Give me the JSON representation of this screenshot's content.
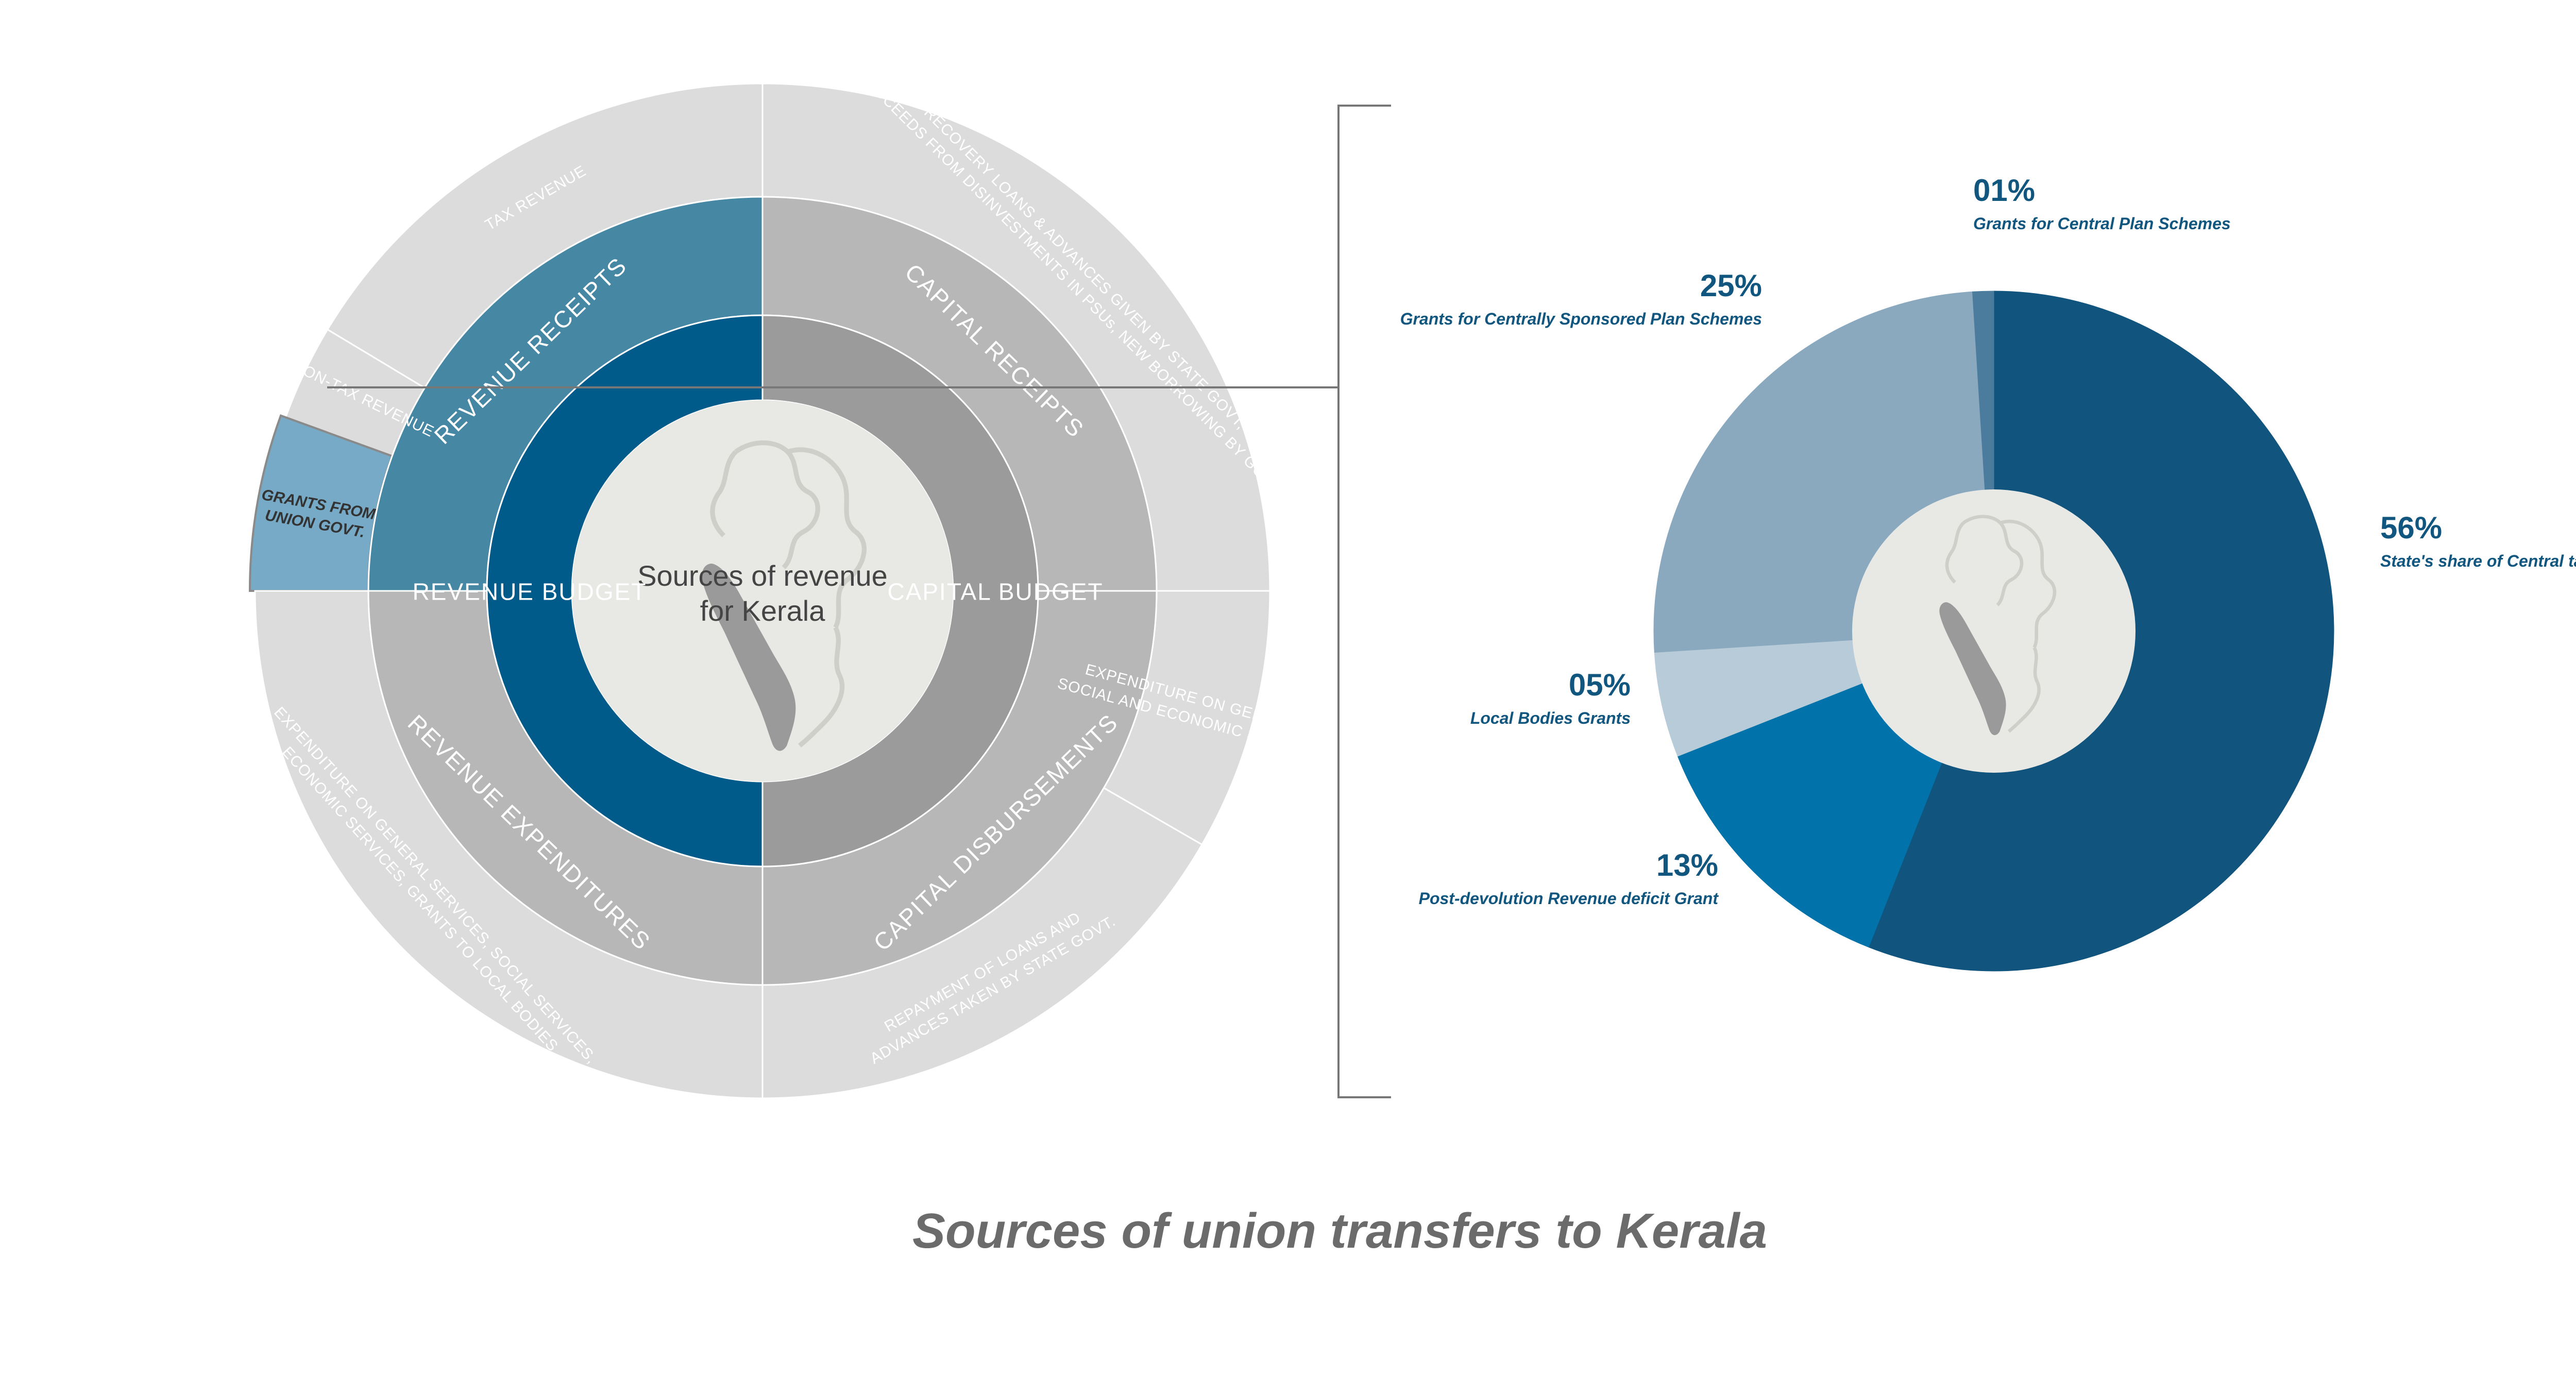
{
  "sunburst": {
    "center_title": "Sources of revenue for Kerala",
    "center_lines": [
      "Sources of revenue",
      "for Kerala"
    ],
    "inner_ring": [
      {
        "label": "REVENUE  BUDGET",
        "color": "#005b8b"
      },
      {
        "label": "CAPITAL  BUDGET",
        "color": "#9b9b9b"
      }
    ],
    "middle_ring": [
      {
        "label": "REVENUE RECEIPTS",
        "color": "#4687a4"
      },
      {
        "label": "CAPITAL RECEIPTS",
        "color": "#b7b7b7"
      },
      {
        "label": "CAPITAL  DISBURSEMENTS",
        "color": "#b7b7b7"
      },
      {
        "label": "REVENUE  EXPENDITURES",
        "color": "#b7b7b7"
      }
    ],
    "outer_ring": [
      {
        "label": "TAX REVENUE",
        "color": "#dcdcdc"
      },
      {
        "label": "NON-TAX REVENUE",
        "color": "#dcdcdc"
      },
      {
        "label": "GRANTS FROM UNION GOVT.",
        "lines": [
          "GRANTS FROM",
          "UNION GOVT."
        ],
        "color": "#76aac6"
      },
      {
        "label": "RECOVERY LOANS & ADVANCES GIVEN BY STATE GOVT, PROCEEDS FROM DISINVESTMENTS IN PSUs, NEW BORROWING BY GOVT.",
        "lines": [
          "RECOVERY LOANS & ADVANCES GIVEN BY STATE GOVT,",
          "PROCEEDS FROM DISINVESTMENTS IN PSUs, NEW BORROWING BY GOVT."
        ],
        "color": "#dcdcdc"
      },
      {
        "label": "EXPENDITURE ON GENERAL, SOCIAL AND ECONOMIC SERVICES",
        "lines": [
          "EXPENDITURE ON GENERAL,",
          "SOCIAL AND ECONOMIC SERVICES"
        ],
        "color": "#dcdcdc"
      },
      {
        "label": "REPAYMENT OF LOANS AND ADVANCES TAKEN BY STATE GOVT.",
        "lines": [
          "REPAYMENT OF LOANS AND",
          "ADVANCES TAKEN BY STATE GOVT."
        ],
        "color": "#dcdcdc"
      },
      {
        "label": "EXPENDITURE ON GENERAL SERVICES, SOCIAL SERVICES, ECONOMIC SERVICES, GRANTS TO LOCAL BODIES",
        "lines": [
          "EXPENDITURE ON GENERAL SERVICES, SOCIAL SERVICES,",
          "ECONOMIC SERVICES, GRANTS TO LOCAL BODIES"
        ],
        "color": "#dcdcdc"
      }
    ]
  },
  "chart_data": {
    "type": "pie",
    "title": "Sources of union transfers to Kerala",
    "slices": [
      {
        "label": "State's share of Central taxes",
        "pct_label": "56%",
        "value": 56,
        "color": "#11547e"
      },
      {
        "label": "Post-devolution Revenue deficit Grant",
        "pct_label": "13%",
        "value": 13,
        "color": "#0273aa"
      },
      {
        "label": "Local Bodies Grants",
        "pct_label": "05%",
        "value": 5,
        "color": "#b8cbd8"
      },
      {
        "label": "Grants for Centrally Sponsored Plan Schemes",
        "pct_label": "25%",
        "value": 25,
        "color": "#8aa9bf"
      },
      {
        "label": "Grants for Central Plan Schemes",
        "pct_label": "01%",
        "value": 1,
        "color": "#4c7c9d"
      }
    ]
  },
  "colors": {
    "center_fill": "#e8e8e5",
    "map_fill": "#9a9a9a",
    "title_text": "#6b6b6b",
    "label_blue": "#11567f"
  }
}
